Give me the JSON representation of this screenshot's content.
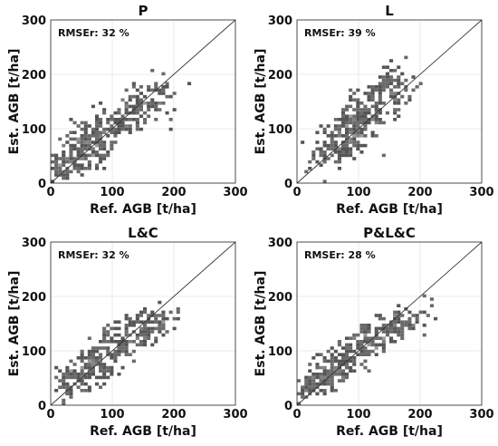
{
  "chart_data": [
    {
      "type": "heatmap",
      "title": "P",
      "annotation": "RMSEr: 32 %",
      "xlabel": "Ref. AGB [t/ha]",
      "ylabel": "Est. AGB [t/ha]",
      "xlim": [
        0,
        300
      ],
      "ylim": [
        0,
        300
      ],
      "xticks": [
        "0",
        "100",
        "200",
        "300"
      ],
      "yticks": [
        "0",
        "100",
        "200",
        "300"
      ],
      "grid": true,
      "one_to_one_line": true,
      "cloud": {
        "centers": [
          [
            100,
            115
          ],
          [
            60,
            75
          ],
          [
            150,
            150
          ],
          [
            30,
            40
          ]
        ],
        "spread_x": 45,
        "spread_y": 40,
        "seed": 11,
        "count": 420
      }
    },
    {
      "type": "heatmap",
      "title": "L",
      "annotation": "RMSEr: 39 %",
      "xlabel": "Ref. AGB [t/ha]",
      "ylabel": "Est. AGB [t/ha]",
      "xlim": [
        0,
        300
      ],
      "ylim": [
        0,
        300
      ],
      "xticks": [
        "0",
        "100",
        "200",
        "300"
      ],
      "yticks": [
        "0",
        "100",
        "200",
        "300"
      ],
      "grid": true,
      "one_to_one_line": true,
      "cloud": {
        "centers": [
          [
            110,
            130
          ],
          [
            90,
            100
          ],
          [
            150,
            175
          ],
          [
            60,
            60
          ]
        ],
        "spread_x": 40,
        "spread_y": 45,
        "seed": 23,
        "count": 380
      }
    },
    {
      "type": "heatmap",
      "title": "L&C",
      "annotation": "RMSEr: 32 %",
      "xlabel": "Ref. AGB [t/ha]",
      "ylabel": "Est. AGB [t/ha]",
      "xlim": [
        0,
        300
      ],
      "ylim": [
        0,
        300
      ],
      "xticks": [
        "0",
        "100",
        "200",
        "300"
      ],
      "yticks": [
        "0",
        "100",
        "200",
        "300"
      ],
      "grid": true,
      "one_to_one_line": true,
      "cloud": {
        "centers": [
          [
            110,
            120
          ],
          [
            70,
            80
          ],
          [
            160,
            140
          ],
          [
            40,
            50
          ]
        ],
        "spread_x": 40,
        "spread_y": 35,
        "seed": 37,
        "count": 360
      }
    },
    {
      "type": "heatmap",
      "title": "P&L&C",
      "annotation": "RMSEr: 28 %",
      "xlabel": "Ref. AGB [t/ha]",
      "ylabel": "Est. AGB [t/ha]",
      "xlim": [
        0,
        300
      ],
      "ylim": [
        0,
        300
      ],
      "xticks": [
        "0",
        "100",
        "200",
        "300"
      ],
      "yticks": [
        "0",
        "100",
        "200",
        "300"
      ],
      "grid": true,
      "one_to_one_line": true,
      "cloud": {
        "centers": [
          [
            110,
            115
          ],
          [
            60,
            70
          ],
          [
            160,
            145
          ],
          [
            25,
            35
          ]
        ],
        "spread_x": 42,
        "spread_y": 32,
        "seed": 53,
        "count": 400
      }
    }
  ]
}
